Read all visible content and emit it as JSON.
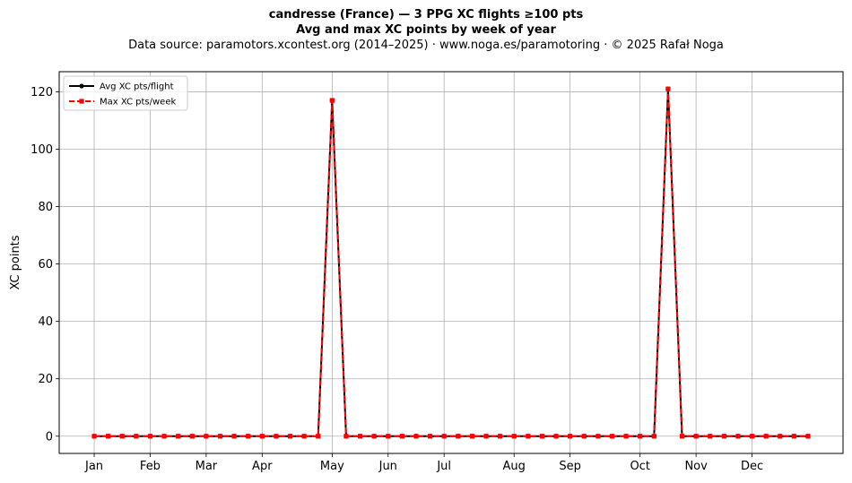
{
  "header": {
    "title_line1": "candresse (France)  —  3 PPG XC flights ≥100 pts",
    "title_line2": "Avg and max XC points by week of year",
    "source_line": "Data source: paramotors.xcontest.org (2014–2025)  ·  www.noga.es/paramotoring  ·  © 2025 Rafał Noga"
  },
  "chart_data": {
    "type": "line",
    "title": "Avg and max XC points by week of year",
    "xlabel": "",
    "ylabel": "XC points",
    "x": [
      1,
      2,
      3,
      4,
      5,
      6,
      7,
      8,
      9,
      10,
      11,
      12,
      13,
      14,
      15,
      16,
      17,
      18,
      19,
      20,
      21,
      22,
      23,
      24,
      25,
      26,
      27,
      28,
      29,
      30,
      31,
      32,
      33,
      34,
      35,
      36,
      37,
      38,
      39,
      40,
      41,
      42,
      43,
      44,
      45,
      46,
      47,
      48,
      49,
      50,
      51,
      52
    ],
    "xlim": [
      -1.5,
      54.5
    ],
    "ylim": [
      -6,
      127
    ],
    "x_ticks": [
      {
        "x": 1,
        "label": "Jan"
      },
      {
        "x": 5,
        "label": "Feb"
      },
      {
        "x": 9,
        "label": "Mar"
      },
      {
        "x": 13,
        "label": "Apr"
      },
      {
        "x": 18,
        "label": "May"
      },
      {
        "x": 22,
        "label": "Jun"
      },
      {
        "x": 26,
        "label": "Jul"
      },
      {
        "x": 31,
        "label": "Aug"
      },
      {
        "x": 35,
        "label": "Sep"
      },
      {
        "x": 40,
        "label": "Oct"
      },
      {
        "x": 44,
        "label": "Nov"
      },
      {
        "x": 48,
        "label": "Dec"
      }
    ],
    "y_ticks": [
      0,
      20,
      40,
      60,
      80,
      100,
      120
    ],
    "grid": true,
    "legend_position": "top-left",
    "series": [
      {
        "name": "Avg XC pts/flight",
        "color": "#000000",
        "style": "solid",
        "marker": "circle",
        "values": [
          0,
          0,
          0,
          0,
          0,
          0,
          0,
          0,
          0,
          0,
          0,
          0,
          0,
          0,
          0,
          0,
          0,
          117,
          0,
          0,
          0,
          0,
          0,
          0,
          0,
          0,
          0,
          0,
          0,
          0,
          0,
          0,
          0,
          0,
          0,
          0,
          0,
          0,
          0,
          0,
          0,
          121,
          0,
          0,
          0,
          0,
          0,
          0,
          0,
          0,
          0,
          0
        ]
      },
      {
        "name": "Max XC pts/week",
        "color": "#ff0000",
        "style": "dashed",
        "marker": "square",
        "values": [
          0,
          0,
          0,
          0,
          0,
          0,
          0,
          0,
          0,
          0,
          0,
          0,
          0,
          0,
          0,
          0,
          0,
          117,
          0,
          0,
          0,
          0,
          0,
          0,
          0,
          0,
          0,
          0,
          0,
          0,
          0,
          0,
          0,
          0,
          0,
          0,
          0,
          0,
          0,
          0,
          0,
          121,
          0,
          0,
          0,
          0,
          0,
          0,
          0,
          0,
          0,
          0
        ]
      }
    ]
  }
}
